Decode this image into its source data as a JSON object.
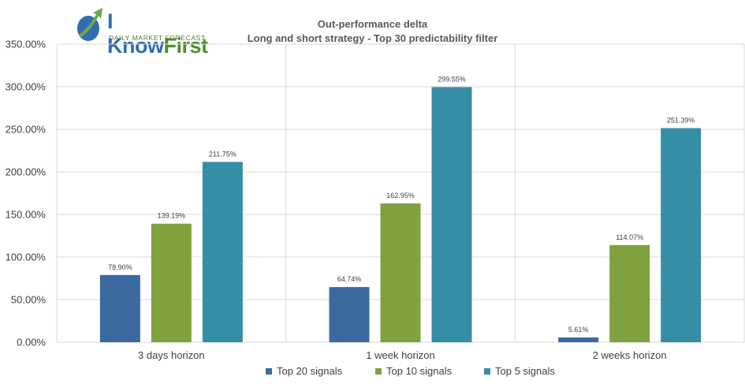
{
  "logo": {
    "brand_prefix": "I ",
    "brand_know": "Know",
    "brand_first": "First",
    "tagline": "DAILY MARKET FORECAST"
  },
  "colors": {
    "top20": "#3a6aa0",
    "top10": "#7fa23e",
    "top5": "#368ea6",
    "grid": "#d9d9d9",
    "axis_text": "#404040"
  },
  "chart_data": {
    "type": "bar",
    "title": "Out-performance delta",
    "subtitle": "Long and short strategy - Top 30 predictability filter",
    "categories": [
      "3 days horizon",
      "1 week horizon",
      "2 weeks horizon"
    ],
    "series": [
      {
        "name": "Top 20 signals",
        "values": [
          78.9,
          64.74,
          5.61
        ],
        "labels": [
          "78.90%",
          "64.74%",
          "5.61%"
        ]
      },
      {
        "name": "Top 10 signals",
        "values": [
          139.19,
          162.95,
          114.07
        ],
        "labels": [
          "139.19%",
          "162.95%",
          "114.07%"
        ]
      },
      {
        "name": "Top 5 signals",
        "values": [
          211.75,
          299.55,
          251.39
        ],
        "labels": [
          "211.75%",
          "299.55%",
          "251.39%"
        ]
      }
    ],
    "ylim": [
      0,
      350
    ],
    "yticks": [
      "0.00%",
      "50.00%",
      "100.00%",
      "150.00%",
      "200.00%",
      "250.00%",
      "300.00%",
      "350.00%"
    ],
    "grid": true,
    "legend_position": "bottom"
  }
}
